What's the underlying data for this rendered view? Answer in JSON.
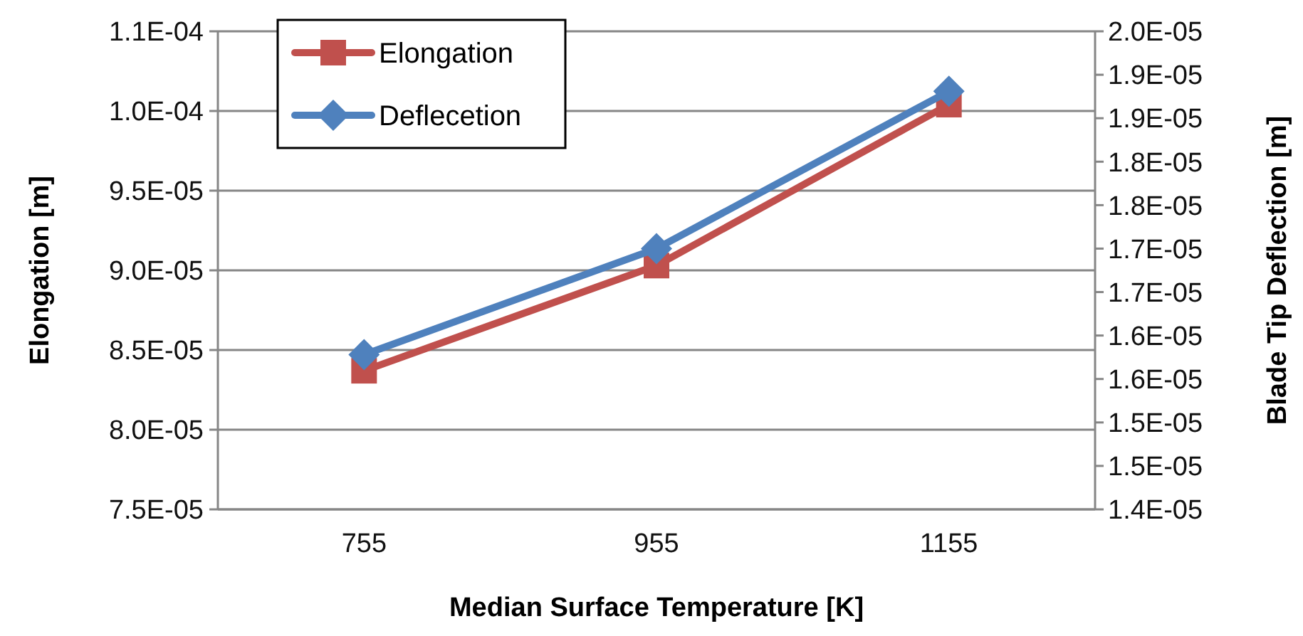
{
  "chart_data": {
    "type": "line",
    "xlabel": "Median Surface Temperature [K]",
    "ylabel": "Elongation [m]",
    "y2label": "Blade Tip Deflection [m]",
    "categories": [
      "755",
      "955",
      "1155"
    ],
    "series": [
      {
        "name": "Elongation",
        "color": "#c0504d",
        "marker": "square",
        "values": [
          8.37e-05,
          9.03e-05,
          0.0001004
        ]
      },
      {
        "name": "Deflecetion",
        "color": "#4f81bd",
        "marker": "diamond",
        "axis": "y2",
        "values": [
          1.578e-05,
          1.7e-05,
          1.881e-05
        ]
      }
    ],
    "ylim": [
      7.5e-05,
      0.000105
    ],
    "yticks": [
      {
        "value": 7.5e-05,
        "label": "7.5E-05"
      },
      {
        "value": 8e-05,
        "label": "8.0E-05"
      },
      {
        "value": 8.5e-05,
        "label": "8.5E-05"
      },
      {
        "value": 9e-05,
        "label": "9.0E-05"
      },
      {
        "value": 9.5e-05,
        "label": "9.5E-05"
      },
      {
        "value": 0.0001,
        "label": "1.0E-04"
      },
      {
        "value": 0.000105,
        "label": "1.1E-04"
      }
    ],
    "y2lim": [
      1.4e-05,
      1.95e-05
    ],
    "y2ticks": [
      {
        "value": 1.4e-05,
        "label": "1.4E-05"
      },
      {
        "value": 1.45e-05,
        "label": "1.5E-05"
      },
      {
        "value": 1.5e-05,
        "label": "1.5E-05"
      },
      {
        "value": 1.55e-05,
        "label": "1.6E-05"
      },
      {
        "value": 1.6e-05,
        "label": "1.6E-05"
      },
      {
        "value": 1.65e-05,
        "label": "1.7E-05"
      },
      {
        "value": 1.7e-05,
        "label": "1.7E-05"
      },
      {
        "value": 1.75e-05,
        "label": "1.8E-05"
      },
      {
        "value": 1.8e-05,
        "label": "1.8E-05"
      },
      {
        "value": 1.85e-05,
        "label": "1.9E-05"
      },
      {
        "value": 1.9e-05,
        "label": "1.9E-05"
      },
      {
        "value": 1.95e-05,
        "label": "2.0E-05"
      }
    ],
    "grid": "y",
    "legend": "top left",
    "line_style": "solid"
  }
}
